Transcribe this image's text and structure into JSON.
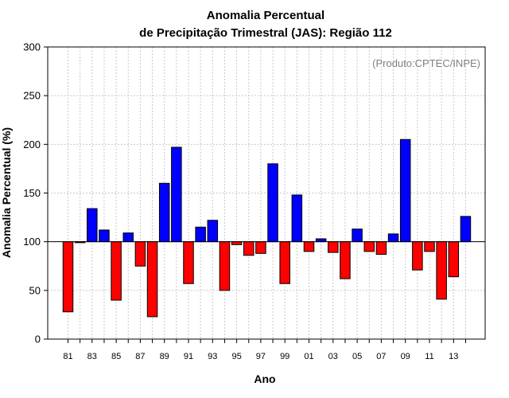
{
  "chart_data": {
    "type": "bar",
    "title_line1": "Anomalia Percentual",
    "title_line2": "de Precipitação Trimestral (JAS): Região 112",
    "xlabel": "Ano",
    "ylabel": "Anomalia Percentual (%)",
    "credit": "(Produto:CPTEC/INPE)",
    "ylim": [
      0,
      300
    ],
    "yticks": [
      0,
      50,
      100,
      150,
      200,
      250,
      300
    ],
    "baseline": 100,
    "grid": true,
    "categories": [
      "81",
      "82",
      "83",
      "84",
      "85",
      "86",
      "87",
      "88",
      "89",
      "90",
      "91",
      "92",
      "93",
      "94",
      "95",
      "96",
      "97",
      "98",
      "99",
      "00",
      "01",
      "02",
      "03",
      "04",
      "05",
      "06",
      "07",
      "08",
      "09",
      "10",
      "11",
      "12",
      "13",
      "14"
    ],
    "xtick_labels": [
      "81",
      "83",
      "85",
      "87",
      "89",
      "91",
      "93",
      "95",
      "97",
      "99",
      "01",
      "03",
      "05",
      "07",
      "09",
      "11",
      "13"
    ],
    "values": [
      28,
      99,
      134,
      112,
      40,
      109,
      75,
      23,
      160,
      197,
      57,
      115,
      122,
      50,
      97,
      86,
      88,
      180,
      57,
      148,
      90,
      103,
      89,
      62,
      113,
      90,
      87,
      108,
      205,
      71,
      90,
      41,
      64,
      126
    ],
    "colors": {
      "above": "#0000ff",
      "below": "#ff0000"
    }
  }
}
